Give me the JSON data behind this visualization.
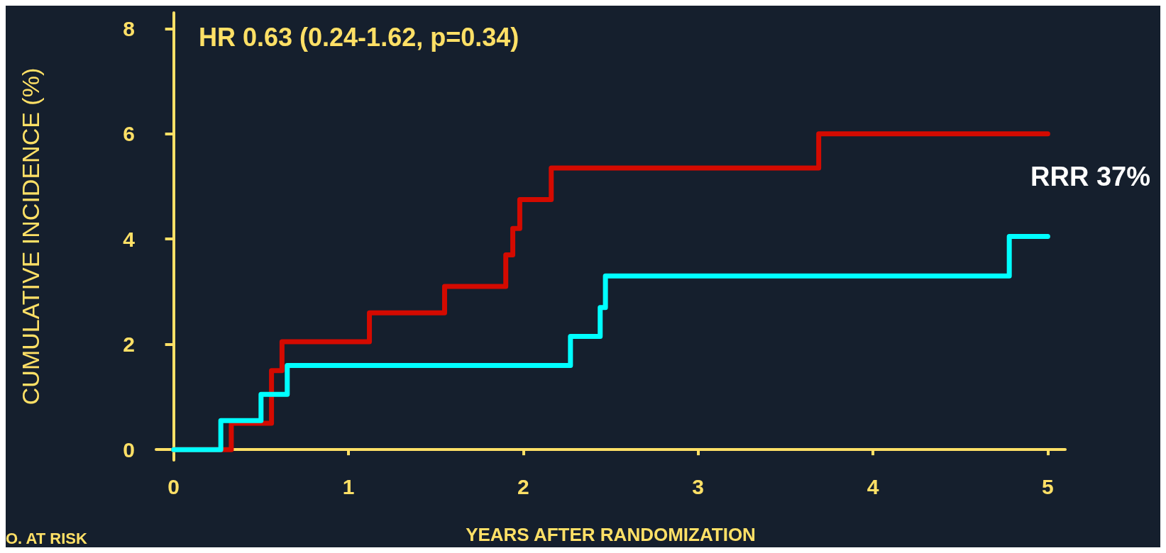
{
  "chart_data": {
    "type": "step",
    "xlabel": "YEARS AFTER RANDOMIZATION",
    "ylabel": "CUMULATIVE INCIDENCE (%)",
    "xlim": [
      -0.1,
      5.1
    ],
    "xticks": [
      0,
      1,
      2,
      3,
      4,
      5
    ],
    "ylim": [
      -0.2,
      8.3
    ],
    "yticks": [
      0,
      2,
      4,
      6,
      8
    ],
    "grid": false,
    "line_style": "solid",
    "marker": "none",
    "series": [
      {
        "color": "#d40a00",
        "x": [
          0,
          0.33,
          0.56,
          0.62,
          1.12,
          1.55,
          1.9,
          1.94,
          1.98,
          2.16,
          3.69,
          5
        ],
        "values": [
          0,
          0.5,
          1.5,
          2.05,
          2.6,
          3.1,
          3.7,
          4.2,
          4.75,
          5.35,
          6.0,
          6.0
        ]
      },
      {
        "color": "#00ffff",
        "x": [
          0,
          0.27,
          0.5,
          0.65,
          2.27,
          2.44,
          2.47,
          4.78,
          5
        ],
        "values": [
          0,
          0.55,
          1.05,
          1.6,
          2.15,
          2.7,
          3.3,
          4.05,
          4.05
        ]
      }
    ],
    "annotations": [
      "HR 0.63 (0.24-1.62, p=0.34)",
      "RRR 37%",
      "O. AT RISK"
    ]
  }
}
